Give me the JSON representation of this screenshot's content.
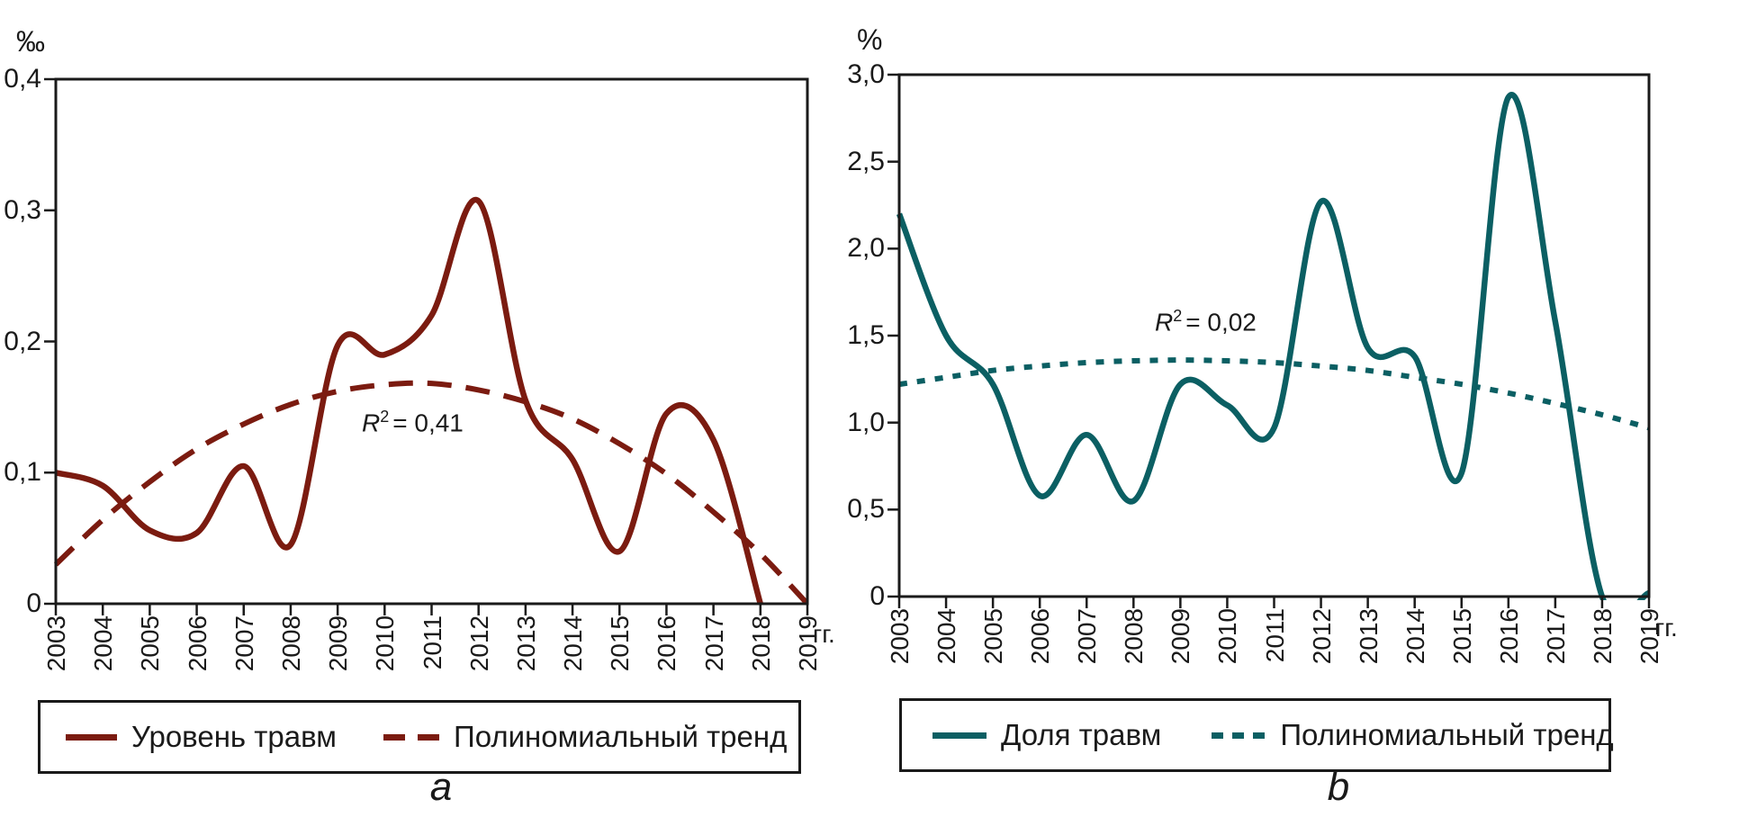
{
  "chart_data": [
    {
      "type": "line",
      "panel_letter": "a",
      "ylabel": "‰",
      "xlabel": "гг.",
      "x": [
        "2003",
        "2004",
        "2005",
        "2006",
        "2007",
        "2008",
        "2009",
        "2010",
        "2011",
        "2012",
        "2013",
        "2014",
        "2015",
        "2016",
        "2017",
        "2018",
        "2019"
      ],
      "ylim": [
        0,
        0.4
      ],
      "y_ticks": {
        "values": [
          0,
          0.1,
          0.2,
          0.3,
          0.4
        ],
        "labels": [
          "0",
          "0,1",
          "0,2",
          "0,3",
          "0,4"
        ]
      },
      "grid": false,
      "legend_position": "bottom",
      "annotation": {
        "base": "R",
        "sup": "2",
        "rest": "= 0,41"
      },
      "series": [
        {
          "name": "Уровень травм",
          "style": "solid",
          "color": "#7B1B10",
          "values": [
            0.1,
            0.09,
            0.056,
            0.054,
            0.105,
            0.045,
            0.197,
            0.19,
            0.22,
            0.307,
            0.155,
            0.11,
            0.04,
            0.145,
            0.125,
            0.0,
            null
          ]
        },
        {
          "name": "Полиномиальный тренд",
          "style": "dashed",
          "color": "#7B1B10",
          "values": [
            0.03,
            0.064,
            0.093,
            0.118,
            0.137,
            0.152,
            0.162,
            0.167,
            0.168,
            0.163,
            0.154,
            0.141,
            0.122,
            0.099,
            0.07,
            0.038,
            0.0
          ]
        }
      ]
    },
    {
      "type": "line",
      "panel_letter": "b",
      "ylabel": "%",
      "xlabel": "гг.",
      "x": [
        "2003",
        "2004",
        "2005",
        "2006",
        "2007",
        "2008",
        "2009",
        "2010",
        "2011",
        "2012",
        "2013",
        "2014",
        "2015",
        "2016",
        "2017",
        "2018",
        "2019"
      ],
      "ylim": [
        0,
        3.0
      ],
      "y_ticks": {
        "values": [
          0,
          0.5,
          1.0,
          1.5,
          2.0,
          2.5,
          3.0
        ],
        "labels": [
          "0",
          "0,5",
          "1,0",
          "1,5",
          "2,0",
          "2,5",
          "3,0"
        ]
      },
      "grid": false,
      "legend_position": "bottom",
      "annotation": {
        "base": "R",
        "sup": "2",
        "rest": "= 0,02"
      },
      "series": [
        {
          "name": "Доля травм",
          "style": "solid",
          "color": "#0B5F63",
          "values": [
            2.2,
            1.5,
            1.22,
            0.58,
            0.93,
            0.55,
            1.22,
            1.1,
            0.97,
            2.27,
            1.43,
            1.38,
            0.71,
            2.87,
            1.58,
            0.0,
            0.02
          ]
        },
        {
          "name": "Полиномиальный тренд",
          "style": "dotted",
          "color": "#0B5F63",
          "values": [
            1.22,
            1.26,
            1.3,
            1.325,
            1.345,
            1.355,
            1.36,
            1.355,
            1.345,
            1.325,
            1.3,
            1.26,
            1.22,
            1.17,
            1.11,
            1.045,
            0.97
          ]
        }
      ]
    }
  ]
}
